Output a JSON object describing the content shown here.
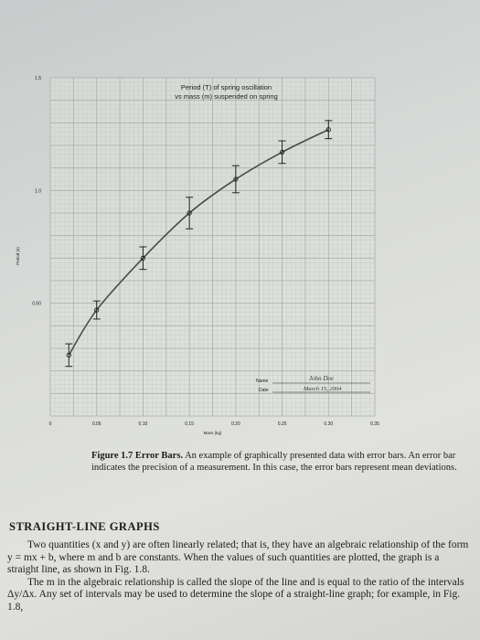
{
  "chart_data": {
    "type": "scatter",
    "title": "Period (T) of spring oscillation",
    "subtitle": "vs mass (m) suspended on spring",
    "xlabel": "Mass (kg)",
    "ylabel": "Period (s)",
    "xlim": [
      0,
      0.35
    ],
    "ylim": [
      0,
      1.5
    ],
    "x_ticks": [
      "0",
      "0.05",
      "0.10",
      "0.15",
      "0.20",
      "0.25",
      "0.30",
      "0.35"
    ],
    "y_ticks": [
      "1.5",
      "1.0",
      "0.50"
    ],
    "grid": true,
    "fit": "smooth curve",
    "series": [
      {
        "points": [
          {
            "x": 0.02,
            "y": 0.27,
            "err": 0.05
          },
          {
            "x": 0.05,
            "y": 0.47,
            "err": 0.04
          },
          {
            "x": 0.1,
            "y": 0.7,
            "err": 0.05
          },
          {
            "x": 0.15,
            "y": 0.9,
            "err": 0.07
          },
          {
            "x": 0.2,
            "y": 1.05,
            "err": 0.06
          },
          {
            "x": 0.25,
            "y": 1.17,
            "err": 0.05
          },
          {
            "x": 0.3,
            "y": 1.27,
            "err": 0.04
          }
        ]
      }
    ],
    "name_label": "Name",
    "name_value": "John Doe",
    "date_label": "Date",
    "date_value": "March 15, 2004"
  },
  "caption": {
    "label": "Figure 1.7 Error Bars.",
    "text": "An example of graphically presented data with error bars. An error bar indicates the precision of a measurement. In this case, the error bars represent mean deviations."
  },
  "section": {
    "heading": "STRAIGHT-LINE GRAPHS",
    "paragraphs": [
      "Two quantities (x and y) are often linearly related; that is, they have an algebraic relationship of the form y = mx + b, where m and b are constants. When the values of such quantities are plotted, the graph is a straight line, as shown in Fig. 1.8.",
      "The m in the algebraic relationship is called the slope of the line and is equal to the ratio of the intervals Δy/Δx. Any set of intervals may be used to determine the slope of a straight-line graph; for example, in Fig. 1.8,"
    ]
  },
  "colors": {
    "grid_major": "#a9b1ab",
    "grid_minor": "#c4cac4",
    "curve": "#4a4a4a",
    "ink": "#222222",
    "signature": "#3a3a3a"
  }
}
